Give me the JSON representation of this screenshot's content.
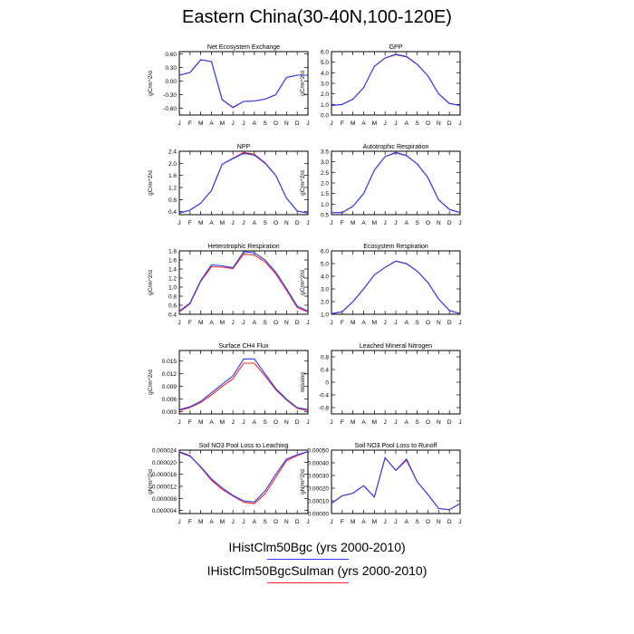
{
  "figure": {
    "title": "Eastern China(30-40N,100-120E)"
  },
  "legend": [
    {
      "label": "IHistClm50Bgc (yrs 2000-2010)",
      "color": "#1f3fff"
    },
    {
      "label": "IHistClm50BgcSulman (yrs 2000-2010)",
      "color": "#ff2020"
    }
  ],
  "chart_data": [
    {
      "type": "line",
      "title": "Net Ecosystem Exchange",
      "ylabel": "gC/m^2/d",
      "categories": [
        "J",
        "F",
        "M",
        "A",
        "M",
        "J",
        "J",
        "A",
        "S",
        "O",
        "N",
        "D",
        "J"
      ],
      "ylim": [
        -0.75,
        0.65
      ],
      "yticks": [
        0.6,
        0.3,
        0.0,
        -0.3,
        -0.6
      ],
      "ytick_labels": [
        "0.60",
        "0.30",
        "0.00",
        "-0.30",
        "-0.60"
      ],
      "series": [
        {
          "values": [
            0.13,
            0.19,
            0.47,
            0.43,
            -0.41,
            -0.58,
            -0.45,
            -0.44,
            -0.4,
            -0.3,
            0.08,
            0.13,
            0.13
          ]
        },
        {
          "values": [
            0.13,
            0.19,
            0.47,
            0.43,
            -0.41,
            -0.59,
            -0.45,
            -0.44,
            -0.4,
            -0.3,
            0.08,
            0.13,
            0.13
          ]
        }
      ]
    },
    {
      "type": "line",
      "title": "GPP",
      "ylabel": "gC/m^2/d",
      "categories": [
        "J",
        "F",
        "M",
        "A",
        "M",
        "J",
        "J",
        "A",
        "S",
        "O",
        "N",
        "D",
        "J"
      ],
      "ylim": [
        0.0,
        6.0
      ],
      "yticks": [
        0.0,
        1.0,
        2.0,
        3.0,
        4.0,
        5.0,
        6.0
      ],
      "ytick_labels": [
        "0.0",
        "1.0",
        "2.0",
        "3.0",
        "4.0",
        "5.0",
        "6.0"
      ],
      "series": [
        {
          "values": [
            0.9,
            1.0,
            1.5,
            2.6,
            4.6,
            5.4,
            5.75,
            5.55,
            4.8,
            3.7,
            2.0,
            1.1,
            0.9
          ]
        },
        {
          "values": [
            0.9,
            1.0,
            1.5,
            2.6,
            4.6,
            5.4,
            5.7,
            5.5,
            4.8,
            3.7,
            2.0,
            1.1,
            0.9
          ]
        }
      ]
    },
    {
      "type": "line",
      "title": "NPP",
      "ylabel": "gC/m^2/d",
      "categories": [
        "J",
        "F",
        "M",
        "A",
        "M",
        "J",
        "J",
        "A",
        "S",
        "O",
        "N",
        "D",
        "J"
      ],
      "ylim": [
        0.3,
        2.4
      ],
      "yticks": [
        0.4,
        0.8,
        1.2,
        1.6,
        2.0,
        2.4
      ],
      "ytick_labels": [
        "0.4",
        "0.8",
        "1.2",
        "1.6",
        "2.0",
        "2.4"
      ],
      "series": [
        {
          "values": [
            0.35,
            0.45,
            0.68,
            1.1,
            1.97,
            2.15,
            2.33,
            2.27,
            2.0,
            1.6,
            0.85,
            0.42,
            0.35
          ]
        },
        {
          "values": [
            0.35,
            0.45,
            0.68,
            1.1,
            1.97,
            2.17,
            2.36,
            2.3,
            2.02,
            1.6,
            0.85,
            0.42,
            0.35
          ]
        }
      ]
    },
    {
      "type": "line",
      "title": "Autotrophic Respiration",
      "ylabel": "gC/m^2/d",
      "categories": [
        "J",
        "F",
        "M",
        "A",
        "M",
        "J",
        "J",
        "A",
        "S",
        "O",
        "N",
        "D",
        "J"
      ],
      "ylim": [
        0.5,
        3.5
      ],
      "yticks": [
        0.5,
        1.0,
        1.5,
        2.0,
        2.5,
        3.0,
        3.5
      ],
      "ytick_labels": [
        "0.5",
        "1.0",
        "1.5",
        "2.0",
        "2.5",
        "3.0",
        "3.5"
      ],
      "series": [
        {
          "values": [
            0.6,
            0.6,
            0.9,
            1.5,
            2.6,
            3.25,
            3.45,
            3.3,
            2.9,
            2.25,
            1.2,
            0.75,
            0.6
          ]
        },
        {
          "values": [
            0.6,
            0.6,
            0.9,
            1.5,
            2.6,
            3.25,
            3.42,
            3.28,
            2.9,
            2.25,
            1.2,
            0.75,
            0.6
          ]
        }
      ]
    },
    {
      "type": "line",
      "title": "Heterotrophic Respiration",
      "ylabel": "gC/m^2/d",
      "categories": [
        "J",
        "F",
        "M",
        "A",
        "M",
        "J",
        "J",
        "A",
        "S",
        "O",
        "N",
        "D",
        "J"
      ],
      "ylim": [
        0.4,
        1.8
      ],
      "yticks": [
        0.4,
        0.6,
        0.8,
        1.0,
        1.2,
        1.4,
        1.6,
        1.8
      ],
      "ytick_labels": [
        "0.4",
        "0.6",
        "0.8",
        "1.0",
        "1.2",
        "1.4",
        "1.6",
        "1.8"
      ],
      "series": [
        {
          "values": [
            0.47,
            0.65,
            1.15,
            1.49,
            1.47,
            1.43,
            1.78,
            1.76,
            1.6,
            1.33,
            0.97,
            0.58,
            0.47
          ]
        },
        {
          "values": [
            0.45,
            0.63,
            1.13,
            1.45,
            1.44,
            1.41,
            1.73,
            1.71,
            1.56,
            1.29,
            0.93,
            0.55,
            0.45
          ]
        }
      ]
    },
    {
      "type": "line",
      "title": "Ecosystem Respiration",
      "ylabel": "gC/m^2/d",
      "categories": [
        "J",
        "F",
        "M",
        "A",
        "M",
        "J",
        "J",
        "A",
        "S",
        "O",
        "N",
        "D",
        "J"
      ],
      "ylim": [
        1.0,
        6.0
      ],
      "yticks": [
        1.0,
        2.0,
        3.0,
        4.0,
        5.0,
        6.0
      ],
      "ytick_labels": [
        "1.0",
        "2.0",
        "3.0",
        "4.0",
        "5.0",
        "6.0"
      ],
      "series": [
        {
          "values": [
            1.05,
            1.2,
            2.0,
            3.0,
            4.1,
            4.7,
            5.2,
            5.0,
            4.4,
            3.5,
            2.2,
            1.3,
            1.05
          ]
        },
        {
          "values": [
            1.05,
            1.2,
            2.0,
            3.0,
            4.1,
            4.7,
            5.18,
            4.98,
            4.4,
            3.5,
            2.2,
            1.3,
            1.05
          ]
        }
      ]
    },
    {
      "type": "line",
      "title": "Surface CH4 Flux",
      "ylabel": "gC/m^2/d",
      "categories": [
        "J",
        "F",
        "M",
        "A",
        "M",
        "J",
        "J",
        "A",
        "S",
        "O",
        "N",
        "D",
        "J"
      ],
      "ylim": [
        0.0025,
        0.0175
      ],
      "yticks": [
        0.003,
        0.006,
        0.009,
        0.012,
        0.015
      ],
      "ytick_labels": [
        "0.003",
        "0.006",
        "0.009",
        "0.012",
        "0.015"
      ],
      "series": [
        {
          "values": [
            0.0035,
            0.0042,
            0.0055,
            0.0075,
            0.0095,
            0.0115,
            0.0155,
            0.0155,
            0.012,
            0.0085,
            0.006,
            0.004,
            0.0035
          ]
        },
        {
          "values": [
            0.0033,
            0.004,
            0.0052,
            0.007,
            0.009,
            0.0108,
            0.0145,
            0.0145,
            0.0115,
            0.0082,
            0.0058,
            0.0038,
            0.0033
          ]
        }
      ]
    },
    {
      "type": "line",
      "title": "Leached Mineral Nitrogen",
      "ylabel": "missing",
      "categories": [
        "J",
        "F",
        "M",
        "A",
        "M",
        "J",
        "J",
        "A",
        "S",
        "O",
        "N",
        "D",
        "J"
      ],
      "ylim": [
        -1.0,
        1.0
      ],
      "yticks": [
        0.8,
        0.4,
        0.0,
        -0.4,
        -0.8
      ],
      "ytick_labels": [
        "0.8",
        "0.4",
        "0",
        "-0.4",
        "-0.8"
      ],
      "series": []
    },
    {
      "type": "line",
      "title": "Soil NO3 Pool Loss to Leaching",
      "ylabel": "gN/m^2/d",
      "categories": [
        "J",
        "F",
        "M",
        "A",
        "M",
        "J",
        "J",
        "A",
        "S",
        "O",
        "N",
        "D",
        "J"
      ],
      "ylim": [
        3e-06,
        2.4e-05
      ],
      "yticks": [
        4e-06,
        8e-06,
        1.2e-05,
        1.6e-05,
        2e-05,
        2.4e-05
      ],
      "ytick_labels": [
        "0.000004",
        "0.000008",
        "0.000012",
        "0.000016",
        "0.000020",
        "0.000024"
      ],
      "series": [
        {
          "values": [
            2.33e-05,
            2.2e-05,
            1.85e-05,
            1.45e-05,
            1.15e-05,
            9e-06,
            7.2e-06,
            6.8e-06,
            1.05e-05,
            1.6e-05,
            2.1e-05,
            2.25e-05,
            2.35e-05
          ]
        },
        {
          "values": [
            2.35e-05,
            2.22e-05,
            1.83e-05,
            1.4e-05,
            1.1e-05,
            8.8e-06,
            6.8e-06,
            6.3e-06,
            9.5e-06,
            1.5e-05,
            2.05e-05,
            2.22e-05,
            2.35e-05
          ]
        }
      ]
    },
    {
      "type": "line",
      "title": "Soil NO3 Pool Loss to Runoff",
      "ylabel": "gN/m^2/d",
      "categories": [
        "J",
        "F",
        "M",
        "A",
        "M",
        "J",
        "J",
        "A",
        "S",
        "O",
        "N",
        "D",
        "J"
      ],
      "ylim": [
        0.0,
        0.0005
      ],
      "yticks": [
        0.0,
        0.0001,
        0.0002,
        0.0003,
        0.0004,
        0.0005
      ],
      "ytick_labels": [
        "0.00000",
        "0.00010",
        "0.00020",
        "0.00030",
        "0.00040",
        "0.00050"
      ],
      "series": [
        {
          "values": [
            8e-05,
            0.00014,
            0.00016,
            0.00022,
            0.00013,
            0.00044,
            0.00034,
            0.00043,
            0.00025,
            0.00015,
            4e-05,
            3e-05,
            8e-05
          ]
        },
        {
          "values": [
            8e-05,
            0.00014,
            0.00016,
            0.00022,
            0.00013,
            0.00044,
            0.00034,
            0.00042,
            0.00025,
            0.00015,
            4e-05,
            3e-05,
            8e-05
          ]
        }
      ]
    }
  ]
}
